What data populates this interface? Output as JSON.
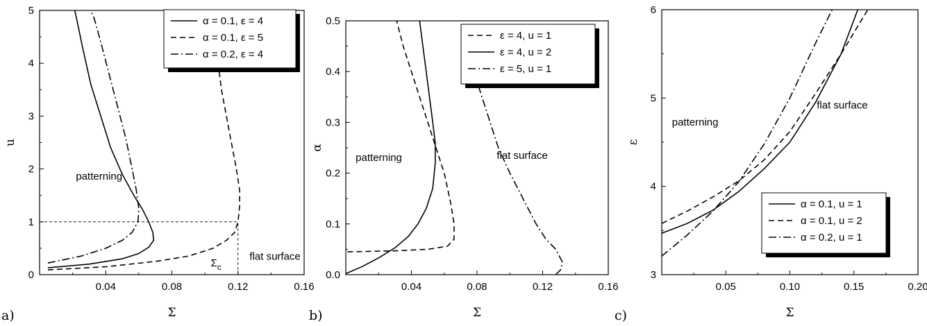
{
  "chart_data": [
    {
      "id": "a",
      "panel_label": "a)",
      "type": "line",
      "xlabel": "Σ",
      "ylabel": "u",
      "xlim": [
        0.0,
        0.16
      ],
      "ylim": [
        0,
        5
      ],
      "xticks": [
        0.04,
        0.08,
        0.12,
        0.16
      ],
      "xtick_labels": [
        "0.04",
        "0.08",
        "0.12",
        "0.16"
      ],
      "yticks": [
        0,
        1,
        2,
        3,
        4,
        5
      ],
      "ytick_labels": [
        "0",
        "1",
        "2",
        "3",
        "4",
        "5"
      ],
      "legend_position": "top-right",
      "series": [
        {
          "name": "α = 0.1, ε = 4",
          "dash": "solid",
          "points": [
            [
              0.005,
              0.13
            ],
            [
              0.03,
              0.2
            ],
            [
              0.05,
              0.3
            ],
            [
              0.06,
              0.4
            ],
            [
              0.066,
              0.52
            ],
            [
              0.069,
              0.65
            ],
            [
              0.0685,
              0.8
            ],
            [
              0.066,
              1.0
            ],
            [
              0.062,
              1.25
            ],
            [
              0.057,
              1.5
            ],
            [
              0.05,
              1.9
            ],
            [
              0.043,
              2.4
            ],
            [
              0.037,
              3.0
            ],
            [
              0.031,
              3.6
            ],
            [
              0.026,
              4.3
            ],
            [
              0.022,
              4.9
            ],
            [
              0.0213,
              5.0
            ]
          ]
        },
        {
          "name": "α = 0.1, ε = 5",
          "dash": "dashed",
          "points": [
            [
              0.005,
              0.09
            ],
            [
              0.04,
              0.15
            ],
            [
              0.07,
              0.25
            ],
            [
              0.09,
              0.35
            ],
            [
              0.105,
              0.5
            ],
            [
              0.113,
              0.65
            ],
            [
              0.118,
              0.8
            ],
            [
              0.12,
              1.0
            ],
            [
              0.121,
              1.3
            ],
            [
              0.121,
              1.6
            ],
            [
              0.119,
              2.0
            ],
            [
              0.116,
              2.5
            ],
            [
              0.113,
              3.0
            ],
            [
              0.11,
              3.5
            ],
            [
              0.108,
              4.0
            ]
          ]
        },
        {
          "name": "α = 0.2, ε = 4",
          "dash": "dashdot",
          "points": [
            [
              0.005,
              0.22
            ],
            [
              0.025,
              0.35
            ],
            [
              0.04,
              0.5
            ],
            [
              0.05,
              0.65
            ],
            [
              0.056,
              0.8
            ],
            [
              0.0595,
              1.0
            ],
            [
              0.06,
              1.25
            ],
            [
              0.0585,
              1.6
            ],
            [
              0.056,
              2.0
            ],
            [
              0.052,
              2.6
            ],
            [
              0.047,
              3.2
            ],
            [
              0.042,
              3.8
            ],
            [
              0.037,
              4.4
            ],
            [
              0.033,
              4.85
            ],
            [
              0.031,
              5.0
            ]
          ]
        }
      ],
      "reference_lines": [
        {
          "from": [
            0.0,
            1.0
          ],
          "to": [
            0.12,
            1.0
          ]
        },
        {
          "from": [
            0.12,
            0.0
          ],
          "to": [
            0.12,
            1.0
          ]
        }
      ],
      "annotations": [
        {
          "text": "patterning",
          "x": 0.022,
          "y": 1.8
        },
        {
          "text": "Σ",
          "sub": "c",
          "x": 0.1035,
          "y": 0.16
        },
        {
          "text": "flat surface",
          "x": 0.127,
          "y": 0.28
        }
      ]
    },
    {
      "id": "b",
      "panel_label": "b)",
      "type": "line",
      "xlabel": "Σ",
      "ylabel": "α",
      "xlim": [
        0.0,
        0.16
      ],
      "ylim": [
        0.0,
        0.5
      ],
      "xticks": [
        0.04,
        0.08,
        0.12,
        0.16
      ],
      "xtick_labels": [
        "0.04",
        "0.08",
        "0.12",
        "0.16"
      ],
      "yticks": [
        0.0,
        0.1,
        0.2,
        0.3,
        0.4,
        0.5
      ],
      "ytick_labels": [
        "0.0",
        "0.1",
        "0.2",
        "0.3",
        "0.4",
        "0.5"
      ],
      "legend_position": "top-right",
      "series": [
        {
          "name": "ε = 4, u = 1",
          "dash": "dashed",
          "points": [
            [
              0.001,
              0.045
            ],
            [
              0.03,
              0.047
            ],
            [
              0.05,
              0.05
            ],
            [
              0.062,
              0.056
            ],
            [
              0.066,
              0.07
            ],
            [
              0.066,
              0.1
            ],
            [
              0.064,
              0.14
            ],
            [
              0.06,
              0.2
            ],
            [
              0.055,
              0.25
            ],
            [
              0.05,
              0.3
            ],
            [
              0.045,
              0.35
            ],
            [
              0.04,
              0.4
            ],
            [
              0.035,
              0.45
            ],
            [
              0.031,
              0.5
            ]
          ]
        },
        {
          "name": "ε = 4, u = 2",
          "dash": "solid",
          "points": [
            [
              0.0,
              0.002
            ],
            [
              0.01,
              0.016
            ],
            [
              0.02,
              0.033
            ],
            [
              0.03,
              0.053
            ],
            [
              0.038,
              0.075
            ],
            [
              0.044,
              0.1
            ],
            [
              0.049,
              0.13
            ],
            [
              0.053,
              0.17
            ],
            [
              0.0545,
              0.22
            ],
            [
              0.0545,
              0.26
            ],
            [
              0.053,
              0.3
            ],
            [
              0.051,
              0.35
            ],
            [
              0.049,
              0.4
            ],
            [
              0.047,
              0.45
            ],
            [
              0.045,
              0.5
            ]
          ]
        },
        {
          "name": "ε = 5, u = 1",
          "dash": "dashdot",
          "points": [
            [
              0.128,
              0.0
            ],
            [
              0.131,
              0.01
            ],
            [
              0.132,
              0.025
            ],
            [
              0.128,
              0.05
            ],
            [
              0.122,
              0.07
            ],
            [
              0.116,
              0.1
            ],
            [
              0.108,
              0.15
            ],
            [
              0.1,
              0.2
            ],
            [
              0.093,
              0.25
            ],
            [
              0.088,
              0.3
            ],
            [
              0.083,
              0.35
            ],
            [
              0.08,
              0.38
            ]
          ]
        }
      ],
      "annotations": [
        {
          "text": "patterning",
          "x": 0.006,
          "y": 0.224
        },
        {
          "text": "flat surface",
          "x": 0.092,
          "y": 0.228
        }
      ]
    },
    {
      "id": "c",
      "panel_label": "c)",
      "type": "line",
      "xlabel": "Σ",
      "ylabel": "ε",
      "xlim": [
        0.0,
        0.2
      ],
      "ylim": [
        3,
        6
      ],
      "xticks": [
        0.05,
        0.1,
        0.15,
        0.2
      ],
      "xtick_labels": [
        "0.05",
        "0.10",
        "0.15",
        "0.20"
      ],
      "yticks": [
        3,
        4,
        5,
        6
      ],
      "ytick_labels": [
        "3",
        "4",
        "5",
        "6"
      ],
      "legend_position": "bottom-right",
      "series": [
        {
          "name": "α = 0.1, u = 1",
          "dash": "solid",
          "points": [
            [
              0.0,
              3.47
            ],
            [
              0.02,
              3.58
            ],
            [
              0.04,
              3.73
            ],
            [
              0.06,
              3.94
            ],
            [
              0.08,
              4.2
            ],
            [
              0.1,
              4.5
            ],
            [
              0.12,
              4.95
            ],
            [
              0.14,
              5.5
            ],
            [
              0.153,
              6.0
            ]
          ]
        },
        {
          "name": "α = 0.1, u = 2",
          "dash": "dashed",
          "points": [
            [
              0.0,
              3.58
            ],
            [
              0.02,
              3.72
            ],
            [
              0.04,
              3.88
            ],
            [
              0.06,
              4.06
            ],
            [
              0.08,
              4.3
            ],
            [
              0.1,
              4.62
            ],
            [
              0.12,
              5.05
            ],
            [
              0.14,
              5.5
            ],
            [
              0.16,
              5.98
            ],
            [
              0.161,
              6.0
            ]
          ]
        },
        {
          "name": "α = 0.2, u = 1",
          "dash": "dashdot",
          "points": [
            [
              0.0,
              3.21
            ],
            [
              0.02,
              3.45
            ],
            [
              0.04,
              3.72
            ],
            [
              0.06,
              4.05
            ],
            [
              0.08,
              4.48
            ],
            [
              0.1,
              5.0
            ],
            [
              0.12,
              5.62
            ],
            [
              0.133,
              6.0
            ]
          ]
        }
      ],
      "annotations": [
        {
          "text": "patterning",
          "x": 0.008,
          "y": 4.69
        },
        {
          "text": "flat surface",
          "x": 0.121,
          "y": 4.88
        }
      ]
    }
  ]
}
